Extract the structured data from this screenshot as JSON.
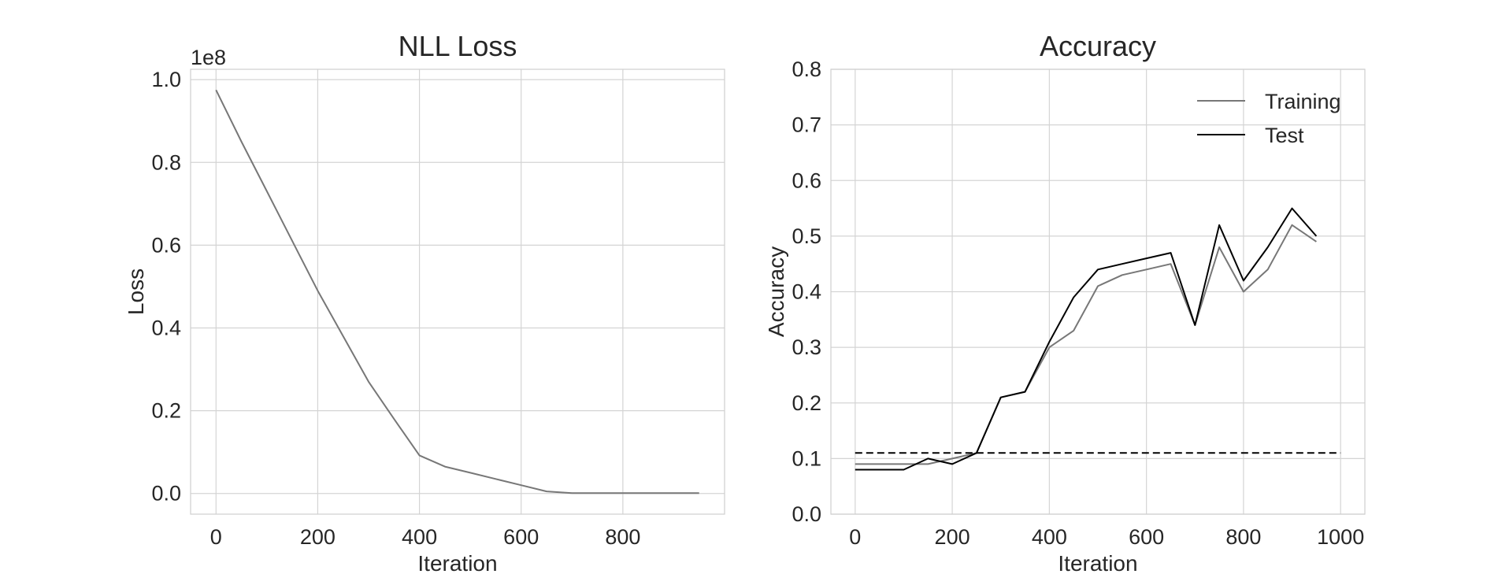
{
  "chart_data": [
    {
      "type": "line",
      "title": "NLL Loss",
      "xlabel": "Iteration",
      "ylabel": "Loss",
      "y_offset_label": "1e8",
      "xlim": [
        -50,
        1000
      ],
      "ylim": [
        -0.05,
        1.025
      ],
      "xticks": [
        0,
        200,
        400,
        600,
        800
      ],
      "xtick_labels": [
        "0",
        "200",
        "400",
        "600",
        "800"
      ],
      "yticks": [
        0,
        0.2,
        0.4,
        0.6,
        0.8,
        1.0
      ],
      "ytick_labels": [
        "0.0",
        "0.2",
        "0.4",
        "0.6",
        "0.8",
        "1.0"
      ],
      "grid": true,
      "series": [
        {
          "color": "#777777",
          "dashed": false,
          "x": [
            0,
            50,
            100,
            150,
            200,
            250,
            300,
            350,
            400,
            450,
            500,
            550,
            600,
            650,
            700,
            750,
            800,
            850,
            900,
            950
          ],
          "y": [
            0.975,
            0.85,
            0.73,
            0.61,
            0.49,
            0.38,
            0.27,
            0.18,
            0.092,
            0.065,
            0.05,
            0.035,
            0.02,
            0.005,
            0.001,
            0.001,
            0.001,
            0.001,
            0.001,
            0.001
          ]
        }
      ]
    },
    {
      "type": "line",
      "title": "Accuracy",
      "xlabel": "Iteration",
      "ylabel": "Accuracy",
      "xlim": [
        -50,
        1050
      ],
      "ylim": [
        0,
        0.8
      ],
      "xticks": [
        0,
        200,
        400,
        600,
        800,
        1000
      ],
      "xtick_labels": [
        "0",
        "200",
        "400",
        "600",
        "800",
        "1000"
      ],
      "yticks": [
        0,
        0.1,
        0.2,
        0.3,
        0.4,
        0.5,
        0.6,
        0.7,
        0.8
      ],
      "ytick_labels": [
        "0.0",
        "0.1",
        "0.2",
        "0.3",
        "0.4",
        "0.5",
        "0.6",
        "0.7",
        "0.8"
      ],
      "grid": true,
      "legend_position": "top-right",
      "series": [
        {
          "name": "Training",
          "color": "#777777",
          "dashed": false,
          "x": [
            0,
            50,
            100,
            150,
            200,
            250,
            300,
            350,
            400,
            450,
            500,
            550,
            600,
            650,
            700,
            750,
            800,
            850,
            900,
            950
          ],
          "y": [
            0.09,
            0.09,
            0.09,
            0.09,
            0.1,
            0.11,
            0.21,
            0.22,
            0.3,
            0.33,
            0.41,
            0.43,
            0.44,
            0.45,
            0.34,
            0.48,
            0.4,
            0.44,
            0.52,
            0.49
          ]
        },
        {
          "name": "Test",
          "color": "#000000",
          "dashed": false,
          "x": [
            0,
            50,
            100,
            150,
            200,
            250,
            300,
            350,
            400,
            450,
            500,
            550,
            600,
            650,
            700,
            750,
            800,
            850,
            900,
            950
          ],
          "y": [
            0.08,
            0.08,
            0.08,
            0.1,
            0.09,
            0.11,
            0.21,
            0.22,
            0.31,
            0.39,
            0.44,
            0.45,
            0.46,
            0.47,
            0.34,
            0.52,
            0.42,
            0.48,
            0.55,
            0.5
          ]
        },
        {
          "color": "#000000",
          "dashed": true,
          "x": [
            0,
            1000
          ],
          "y": [
            0.11,
            0.11
          ]
        }
      ]
    }
  ]
}
